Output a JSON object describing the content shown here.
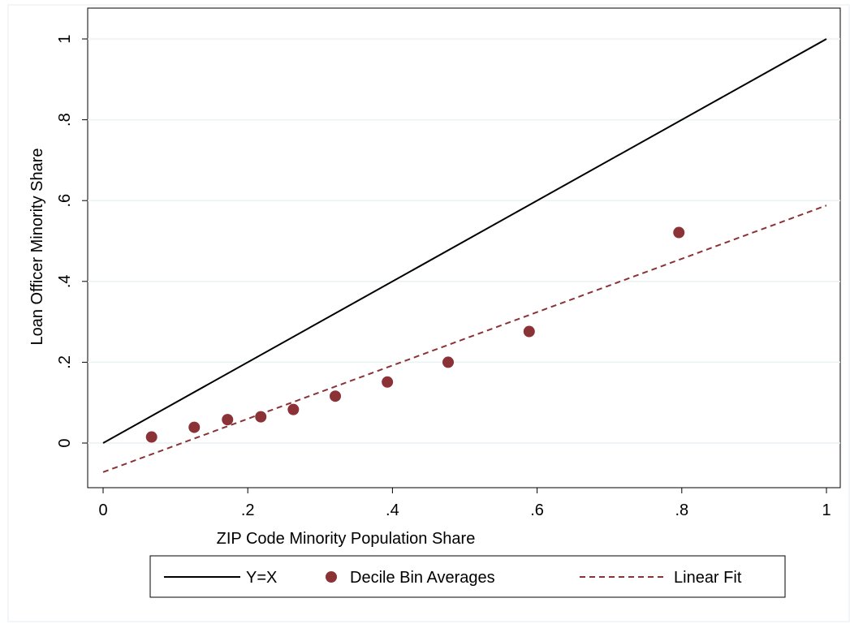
{
  "chart_data": {
    "type": "scatter",
    "title": "",
    "xlabel": "ZIP Code Minority Population Share",
    "ylabel": "Loan Officer Minority Share",
    "xlim": [
      0,
      1
    ],
    "ylim": [
      -0.1,
      1.05
    ],
    "x_ticks": [
      0,
      0.2,
      0.4,
      0.6,
      0.8,
      1
    ],
    "x_tick_labels": [
      "0",
      ".2",
      ".4",
      ".6",
      ".8",
      "1"
    ],
    "y_ticks": [
      0,
      0.2,
      0.4,
      0.6,
      0.8,
      1
    ],
    "y_tick_labels": [
      "0",
      ".2",
      ".4",
      ".6",
      ".8",
      "1"
    ],
    "grid": "horizontal",
    "legend_position": "bottom",
    "series": [
      {
        "name": "Y=X",
        "kind": "line",
        "style": "solid",
        "color": "#000000",
        "x": [
          0,
          1
        ],
        "y": [
          0,
          1
        ]
      },
      {
        "name": "Decile Bin Averages",
        "kind": "points",
        "color": "#8a3236",
        "x": [
          0.067,
          0.126,
          0.172,
          0.218,
          0.263,
          0.321,
          0.393,
          0.477,
          0.589,
          0.796
        ],
        "y": [
          0.015,
          0.039,
          0.058,
          0.065,
          0.083,
          0.116,
          0.151,
          0.2,
          0.276,
          0.521
        ]
      },
      {
        "name": "Linear Fit",
        "kind": "line",
        "style": "dashed",
        "color": "#8a3236",
        "x": [
          0,
          1
        ],
        "y": [
          -0.072,
          0.588
        ]
      }
    ]
  }
}
